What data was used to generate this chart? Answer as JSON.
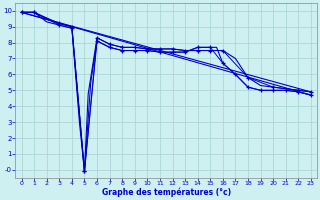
{
  "xlabel": "Graphe des températures (°c)",
  "background_color": "#cef0f0",
  "grid_color": "#aad8d8",
  "line_color": "#0000cc",
  "xlim": [
    -0.5,
    23.5
  ],
  "ylim": [
    -0.5,
    10.5
  ],
  "xticks": [
    0,
    1,
    2,
    3,
    4,
    5,
    6,
    7,
    8,
    9,
    10,
    11,
    12,
    13,
    14,
    15,
    16,
    17,
    18,
    19,
    20,
    21,
    22,
    23
  ],
  "yticks": [
    0,
    1,
    2,
    3,
    4,
    5,
    6,
    7,
    8,
    9,
    10
  ],
  "ytick_labels": [
    "-0",
    "1",
    "2",
    "3",
    "4",
    "5",
    "6",
    "7",
    "8",
    "9",
    "10"
  ],
  "line1_x": [
    0,
    1,
    2,
    3,
    4,
    4.5,
    5,
    5.3,
    6,
    7,
    8,
    9,
    10,
    11,
    12,
    13,
    14,
    15,
    16,
    17,
    18,
    19,
    20,
    21,
    22,
    23
  ],
  "line1_y": [
    9.9,
    9.9,
    9.5,
    9.2,
    9.0,
    4.5,
    -0.1,
    4.8,
    8.3,
    7.9,
    7.7,
    7.7,
    7.6,
    7.6,
    7.6,
    7.5,
    7.5,
    7.5,
    7.5,
    7.0,
    5.8,
    5.3,
    5.2,
    5.1,
    5.0,
    4.9
  ],
  "line2_x": [
    0,
    1,
    2,
    3,
    4,
    4.6,
    5,
    5.5,
    6,
    7,
    8,
    9,
    10,
    11,
    12,
    13,
    14,
    15,
    15.5,
    16,
    17,
    18,
    19,
    20,
    21,
    22,
    23
  ],
  "line2_y": [
    9.9,
    9.9,
    9.3,
    9.1,
    8.9,
    3.0,
    -0.1,
    5.5,
    8.1,
    7.7,
    7.5,
    7.5,
    7.5,
    7.4,
    7.4,
    7.4,
    7.7,
    7.7,
    7.7,
    6.7,
    6.0,
    5.2,
    5.0,
    5.0,
    5.0,
    4.9,
    4.7
  ],
  "trend1_x": [
    0,
    23
  ],
  "trend1_y": [
    9.9,
    4.9
  ],
  "trend2_x": [
    0,
    23
  ],
  "trend2_y": [
    9.9,
    4.7
  ],
  "marker1_x": [
    0,
    1,
    3,
    4,
    5,
    6,
    7,
    8,
    9,
    10,
    11,
    12,
    13,
    14,
    15,
    16,
    18,
    20,
    22,
    23
  ],
  "marker1_y": [
    9.9,
    9.9,
    9.2,
    9.0,
    -0.1,
    8.3,
    7.9,
    7.7,
    7.7,
    7.6,
    7.6,
    7.6,
    7.5,
    7.5,
    7.5,
    7.5,
    5.8,
    5.2,
    5.0,
    4.9
  ],
  "marker2_x": [
    0,
    1,
    3,
    4,
    5,
    6,
    7,
    8,
    9,
    10,
    11,
    12,
    13,
    14,
    15,
    16,
    17,
    18,
    19,
    20,
    21,
    22,
    23
  ],
  "marker2_y": [
    9.9,
    9.9,
    9.1,
    8.9,
    -0.1,
    8.1,
    7.7,
    7.5,
    7.5,
    7.5,
    7.4,
    7.4,
    7.4,
    7.7,
    7.7,
    6.7,
    6.0,
    5.2,
    5.0,
    5.0,
    5.0,
    4.9,
    4.7
  ]
}
